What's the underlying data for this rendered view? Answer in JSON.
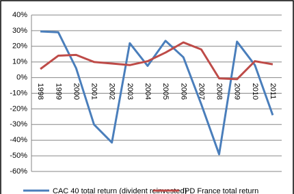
{
  "chart_data": {
    "type": "line",
    "categories": [
      "1998",
      "1999",
      "2000",
      "2001",
      "2002",
      "2003",
      "2004",
      "2005",
      "2006",
      "2007",
      "2008",
      "2009",
      "2010",
      "2011"
    ],
    "series": [
      {
        "name": "CAC 40 total  return (divident reinvested)",
        "color": "#4a7ebb",
        "values": [
          29.5,
          29,
          6,
          -30,
          -41.5,
          22,
          7.5,
          23.5,
          13,
          -17,
          -49,
          23,
          8,
          -24
        ]
      },
      {
        "name": "IPD France total return",
        "color": "#be4b48",
        "values": [
          5.5,
          14,
          14.5,
          10,
          9,
          8,
          10.5,
          16,
          22.5,
          18,
          -0.5,
          -1,
          10.5,
          8.5
        ]
      }
    ],
    "ylim": [
      -60,
      40
    ],
    "yticks": [
      {
        "value": -60,
        "label": "-60%"
      },
      {
        "value": -50,
        "label": "-50%"
      },
      {
        "value": -40,
        "label": "-40%"
      },
      {
        "value": -30,
        "label": "-30%"
      },
      {
        "value": -20,
        "label": "-20%"
      },
      {
        "value": -10,
        "label": "-10%"
      },
      {
        "value": 0,
        "label": "0%"
      },
      {
        "value": 10,
        "label": "10%"
      },
      {
        "value": 20,
        "label": "20%"
      },
      {
        "value": 30,
        "label": "30%"
      },
      {
        "value": 40,
        "label": "40%"
      }
    ],
    "grid": true
  }
}
